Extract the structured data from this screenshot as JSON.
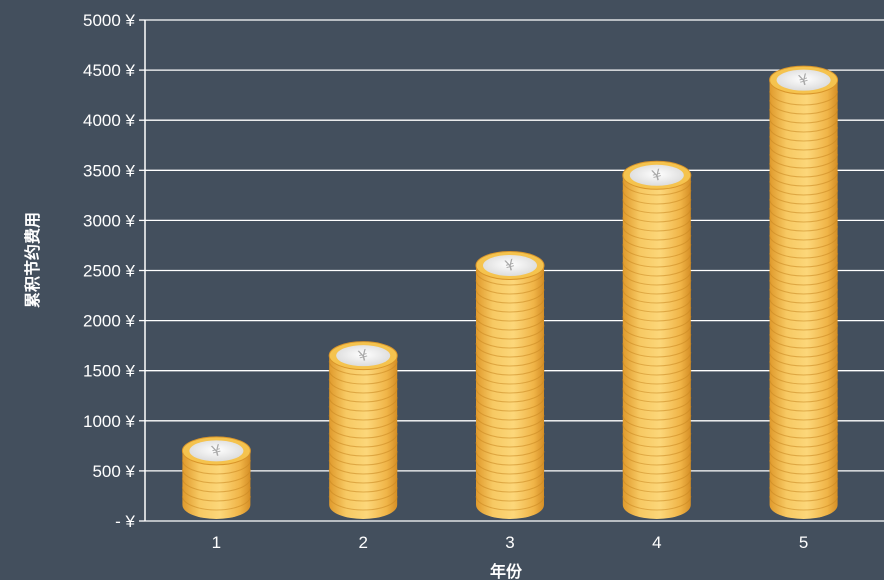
{
  "chart_data": {
    "type": "bar",
    "categories": [
      "1",
      "2",
      "3",
      "4",
      "5"
    ],
    "values": [
      700,
      1650,
      2550,
      3450,
      4400
    ],
    "xlabel": "年份",
    "ylabel": "累积节约费用",
    "ylim": [
      0,
      5000
    ],
    "y_ticks": [
      "- ¥",
      "500 ¥",
      "1000 ¥",
      "1500 ¥",
      "2000 ¥",
      "2500 ¥",
      "3000 ¥",
      "3500 ¥",
      "4000 ¥",
      "4500 ¥",
      "5000 ¥"
    ],
    "grid": true,
    "bar_style": "stacked gold coins",
    "coin_face_symbol": "¥",
    "colors": {
      "background": "#434f5d",
      "coin": "#f4c05a",
      "coin_edge": "#d99a2e",
      "coin_face": "#eeeeee",
      "grid": "#ffffff"
    }
  }
}
